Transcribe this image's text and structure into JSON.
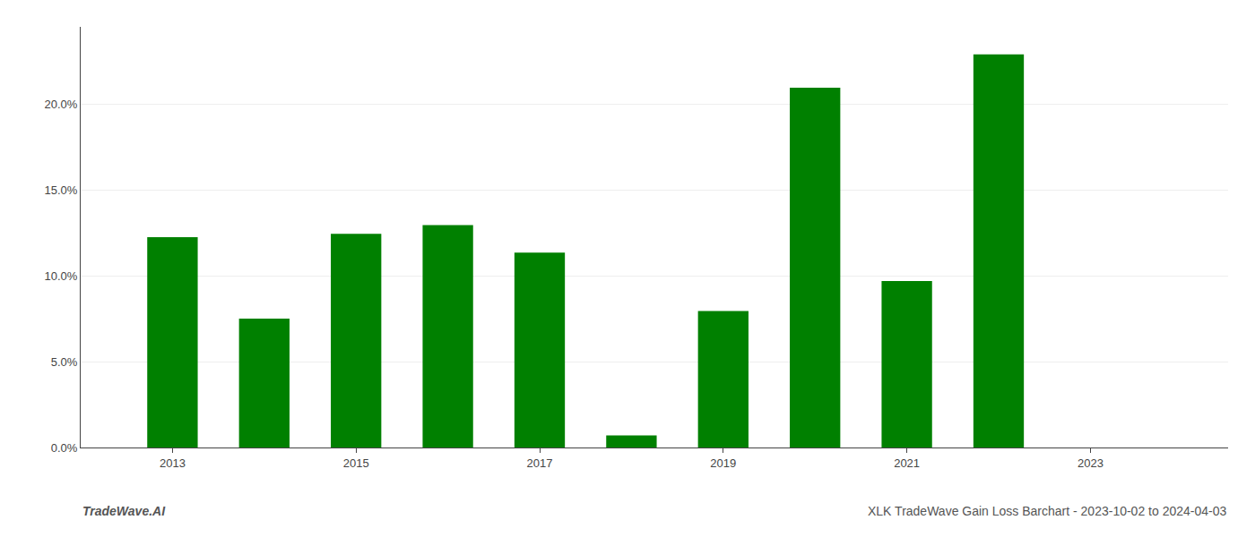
{
  "chart_data": {
    "type": "bar",
    "title": "XLK TradeWave Gain Loss Barchart - 2023-10-02 to 2024-04-03",
    "annotations": [
      "TradeWave.AI"
    ],
    "x": [
      2013,
      2014,
      2015,
      2016,
      2017,
      2018,
      2019,
      2020,
      2021,
      2022,
      2023
    ],
    "values": [
      0.1225,
      0.075,
      0.1245,
      0.1295,
      0.1135,
      0.007,
      0.0795,
      0.2095,
      0.097,
      0.229,
      0.0
    ],
    "color": "#008000",
    "xlim": [
      2012.0,
      2024.5
    ],
    "xticks": [
      2013,
      2015,
      2017,
      2019,
      2021,
      2023
    ],
    "ylim": [
      0,
      0.245
    ],
    "yticks": [
      {
        "value": 0.0,
        "label": "0.0%"
      },
      {
        "value": 0.05,
        "label": "5.0%"
      },
      {
        "value": 0.1,
        "label": "10.0%"
      },
      {
        "value": 0.15,
        "label": "15.0%"
      },
      {
        "value": 0.2,
        "label": "20.0%"
      }
    ],
    "grid": "y"
  }
}
